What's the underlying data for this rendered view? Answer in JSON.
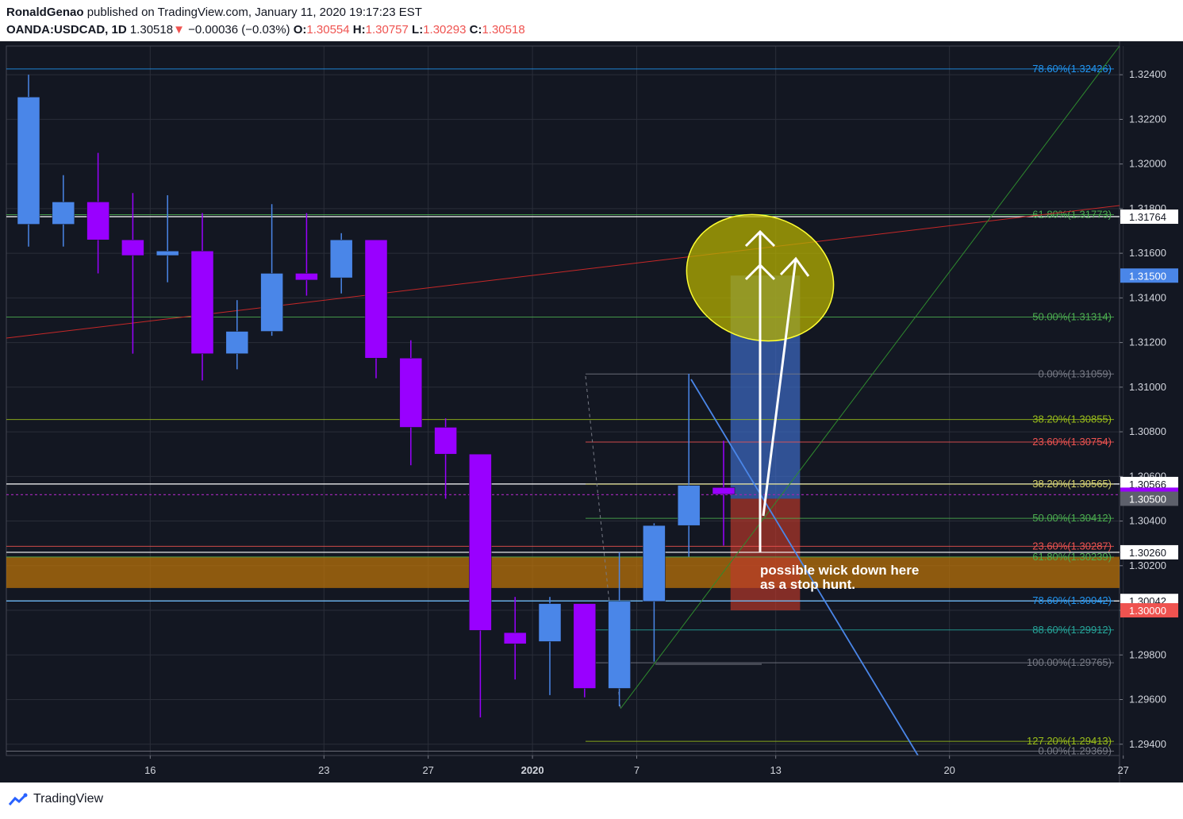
{
  "header": {
    "author": "RonaldGenao",
    "published": "published on TradingView.com, January 11, 2020 19:17:23 EST",
    "symbol": "OANDA:USDCAD, 1D",
    "last": "1.30518",
    "arrow": "▼",
    "change": "−0.00036 (−0.03%)",
    "o_label": "O:",
    "o_value": "1.30554",
    "h_label": "H:",
    "h_value": "1.30757",
    "l_label": "L:",
    "l_value": "1.30293",
    "c_label": "C:",
    "c_value": "1.30518"
  },
  "footer": {
    "brand": "TradingView",
    "logo_icon": "tradingview-logo-icon"
  },
  "colors": {
    "background": "#131722",
    "bull": "#4a86e8",
    "bear": "#9900ff",
    "grid": "#2a2e39",
    "axis_text": "#d1d4dc",
    "red_line": "#c62828",
    "green_line": "#2e8b2e"
  },
  "chart_data": {
    "type": "candlestick",
    "y_range": [
      1.2936,
      1.3255
    ],
    "y_ticks": [
      "1.29400",
      "1.29600",
      "1.29800",
      "1.30000",
      "1.30200",
      "1.30400",
      "1.30600",
      "1.30800",
      "1.31000",
      "1.31200",
      "1.31400",
      "1.31600",
      "1.31800",
      "1.32000",
      "1.32200",
      "1.32400"
    ],
    "x_ticks": [
      {
        "label": "16",
        "i": 3.5
      },
      {
        "label": "23",
        "i": 8.5
      },
      {
        "label": "27",
        "i": 11.5
      },
      {
        "label": "2020",
        "i": 14.5
      },
      {
        "label": "7",
        "i": 17.5
      },
      {
        "label": "13",
        "i": 21.5
      },
      {
        "label": "20",
        "i": 26.5
      },
      {
        "label": "27",
        "i": 31.5
      }
    ],
    "candles": [
      {
        "o": 1.3173,
        "h": 1.324,
        "l": 1.3163,
        "c": 1.323
      },
      {
        "o": 1.3173,
        "h": 1.3195,
        "l": 1.3163,
        "c": 1.3183
      },
      {
        "o": 1.3183,
        "h": 1.3205,
        "l": 1.3151,
        "c": 1.3166
      },
      {
        "o": 1.3166,
        "h": 1.3187,
        "l": 1.3115,
        "c": 1.3159
      },
      {
        "o": 1.3159,
        "h": 1.3186,
        "l": 1.3147,
        "c": 1.3161
      },
      {
        "o": 1.3161,
        "h": 1.3178,
        "l": 1.3103,
        "c": 1.3115
      },
      {
        "o": 1.3115,
        "h": 1.3139,
        "l": 1.3108,
        "c": 1.3125
      },
      {
        "o": 1.3125,
        "h": 1.3182,
        "l": 1.3123,
        "c": 1.3151
      },
      {
        "o": 1.3151,
        "h": 1.3178,
        "l": 1.3141,
        "c": 1.3148
      },
      {
        "o": 1.3149,
        "h": 1.3169,
        "l": 1.3142,
        "c": 1.3166
      },
      {
        "o": 1.3166,
        "h": 1.3166,
        "l": 1.3104,
        "c": 1.3113
      },
      {
        "o": 1.3113,
        "h": 1.3121,
        "l": 1.3065,
        "c": 1.3082
      },
      {
        "o": 1.3082,
        "h": 1.3086,
        "l": 1.305,
        "c": 1.307
      },
      {
        "o": 1.307,
        "h": 1.307,
        "l": 1.2952,
        "c": 1.2991
      },
      {
        "o": 1.299,
        "h": 1.3006,
        "l": 1.2969,
        "c": 1.2985
      },
      {
        "o": 1.2986,
        "h": 1.3006,
        "l": 1.2962,
        "c": 1.3003
      },
      {
        "o": 1.3003,
        "h": 1.3003,
        "l": 1.2961,
        "c": 1.2965
      },
      {
        "o": 1.2965,
        "h": 1.3026,
        "l": 1.2957,
        "c": 1.3004
      },
      {
        "o": 1.3004,
        "h": 1.3039,
        "l": 1.2977,
        "c": 1.3038
      },
      {
        "o": 1.3038,
        "h": 1.3106,
        "l": 1.3024,
        "c": 1.3056
      },
      {
        "o": 1.3055,
        "h": 1.3076,
        "l": 1.3029,
        "c": 1.3052
      }
    ],
    "levels": [
      {
        "label": "78.60%(1.32426)",
        "price": 1.32426,
        "color": "#2196f3",
        "x_start": 8
      },
      {
        "label": "61.80%(1.31773)",
        "price": 1.31773,
        "color": "#4caf50",
        "x_start": 8
      },
      {
        "label": "50.00%(1.31314)",
        "price": 1.31314,
        "color": "#4caf50",
        "x_start": 8
      },
      {
        "label": "0.00%(1.31059)",
        "price": 1.31059,
        "color": "#787b86",
        "x_start": 738
      },
      {
        "label": "38.20%(1.30855)",
        "price": 1.30855,
        "color": "#9bbf1a",
        "x_start": 8
      },
      {
        "label": "23.60%(1.30754)",
        "price": 1.30754,
        "color": "#ef5350",
        "x_start": 738
      },
      {
        "label": "38.20%(1.30565)",
        "price": 1.30565,
        "color": "#d8d46a",
        "x_start": 738
      },
      {
        "label": "50.00%(1.30412)",
        "price": 1.30412,
        "color": "#4caf50",
        "x_start": 738
      },
      {
        "label": "23.60%(1.30287)",
        "price": 1.30287,
        "color": "#ef5350",
        "x_start": 8
      },
      {
        "label": "61.80%(1.30239)",
        "price": 1.30239,
        "color": "#4caf50",
        "x_start": 8
      },
      {
        "label": "78.60%(1.30042)",
        "price": 1.30042,
        "color": "#2196f3",
        "x_start": 8
      },
      {
        "label": "88.60%(1.29912)",
        "price": 1.29912,
        "color": "#26a69a",
        "x_start": 738
      },
      {
        "label": "100.00%(1.29765)",
        "price": 1.29765,
        "color": "#787b86",
        "x_start": 738
      },
      {
        "label": "127.20%(1.29413)",
        "price": 1.29413,
        "color": "#9bbf1a",
        "x_start": 738
      },
      {
        "label": "0.00%(1.29369)",
        "price": 1.29369,
        "color": "#787b86",
        "x_start": 8
      }
    ],
    "horizontal_lines": [
      {
        "price": 1.31764,
        "color": "#ffffff"
      },
      {
        "price": 1.30566,
        "color": "#ffffff"
      },
      {
        "price": 1.3026,
        "color": "#ffffff"
      },
      {
        "price": 1.30042,
        "color": "#ffffff"
      },
      {
        "price": 1.30518,
        "color": "#9c27b0",
        "dashed": true
      }
    ],
    "price_tags": [
      {
        "label": "1.31764",
        "price": 1.31764,
        "bg": "#ffffff",
        "fg": "#131722"
      },
      {
        "label": "1.31500",
        "price": 1.315,
        "bg": "#4a86e8",
        "fg": "#ffffff"
      },
      {
        "label": "1.30566",
        "price": 1.30566,
        "bg": "#ffffff",
        "fg": "#131722"
      },
      {
        "label": "1.30518",
        "price": 1.30518,
        "bg": "#9900ff",
        "fg": "#ffffff"
      },
      {
        "label": "1.30500",
        "price": 1.305,
        "bg": "#5d606b",
        "fg": "#ffffff"
      },
      {
        "label": "1.30260",
        "price": 1.3026,
        "bg": "#ffffff",
        "fg": "#131722"
      },
      {
        "label": "1.30042",
        "price": 1.30042,
        "bg": "#ffffff",
        "fg": "#131722"
      },
      {
        "label": "1.30000",
        "price": 1.3,
        "bg": "#ef5350",
        "fg": "#ffffff"
      }
    ],
    "zone": {
      "top": 1.3024,
      "bottom": 1.301,
      "color": "#b8720a"
    },
    "position": {
      "entry": 1.305,
      "target": 1.315,
      "stop": 1.3,
      "i_from": 20.2,
      "i_to": 22.2
    },
    "annotation": [
      "possible wick down here",
      "as a stop hunt."
    ]
  }
}
